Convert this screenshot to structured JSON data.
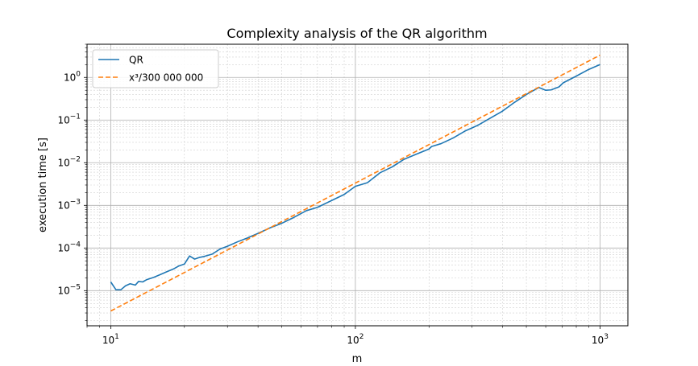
{
  "chart_data": {
    "type": "line",
    "title": "Complexity analysis of the QR algorithm",
    "xlabel": "m",
    "ylabel": "execution time [s]",
    "xscale": "log",
    "yscale": "log",
    "xlim": [
      8,
      1300
    ],
    "ylim": [
      1.5e-06,
      6
    ],
    "grid": "major and minor",
    "legend_position": "upper-left",
    "x_ticks": [
      {
        "value": 10,
        "mantissa": "10",
        "exp": "1"
      },
      {
        "value": 100,
        "mantissa": "10",
        "exp": "2"
      },
      {
        "value": 1000,
        "mantissa": "10",
        "exp": "3"
      }
    ],
    "y_ticks": [
      {
        "value": 1e-05,
        "mantissa": "10",
        "exp": "−5"
      },
      {
        "value": 0.0001,
        "mantissa": "10",
        "exp": "−4"
      },
      {
        "value": 0.001,
        "mantissa": "10",
        "exp": "−3"
      },
      {
        "value": 0.01,
        "mantissa": "10",
        "exp": "−2"
      },
      {
        "value": 0.1,
        "mantissa": "10",
        "exp": "−1"
      },
      {
        "value": 1,
        "mantissa": "10",
        "exp": "0"
      }
    ],
    "series": [
      {
        "name": "QR",
        "color": "#1f77b4",
        "style": "solid",
        "x": [
          10,
          10.5,
          11,
          11.5,
          12,
          12.6,
          13,
          13.5,
          14,
          15,
          16,
          17,
          18,
          19,
          20,
          21,
          22,
          23,
          24,
          26,
          28,
          30,
          33,
          36,
          40,
          45,
          50,
          56,
          63,
          70,
          80,
          90,
          100,
          112,
          126,
          141,
          158,
          178,
          200,
          205,
          224,
          251,
          282,
          316,
          355,
          398,
          447,
          501,
          562,
          600,
          631,
          680,
          708,
          794,
          891,
          1000
        ],
        "y": [
          1.6e-05,
          1.05e-05,
          1.05e-05,
          1.3e-05,
          1.45e-05,
          1.35e-05,
          1.65e-05,
          1.6e-05,
          1.8e-05,
          2.05e-05,
          2.4e-05,
          2.8e-05,
          3.2e-05,
          3.8e-05,
          4.2e-05,
          6.5e-05,
          5.5e-05,
          6e-05,
          6.3e-05,
          7.2e-05,
          9.5e-05,
          0.00011,
          0.00014,
          0.00017,
          0.00022,
          0.0003,
          0.00038,
          0.00052,
          0.00075,
          0.0009,
          0.0013,
          0.0018,
          0.0028,
          0.0034,
          0.0058,
          0.0079,
          0.012,
          0.016,
          0.021,
          0.024,
          0.028,
          0.038,
          0.056,
          0.075,
          0.11,
          0.16,
          0.26,
          0.4,
          0.58,
          0.5,
          0.51,
          0.6,
          0.75,
          1.05,
          1.5,
          2.0
        ]
      },
      {
        "name": "x³/300 000 000",
        "color": "#ff7f0e",
        "style": "dashed",
        "x": [
          10,
          1000
        ],
        "y": [
          3.33e-06,
          3.33
        ]
      }
    ]
  }
}
